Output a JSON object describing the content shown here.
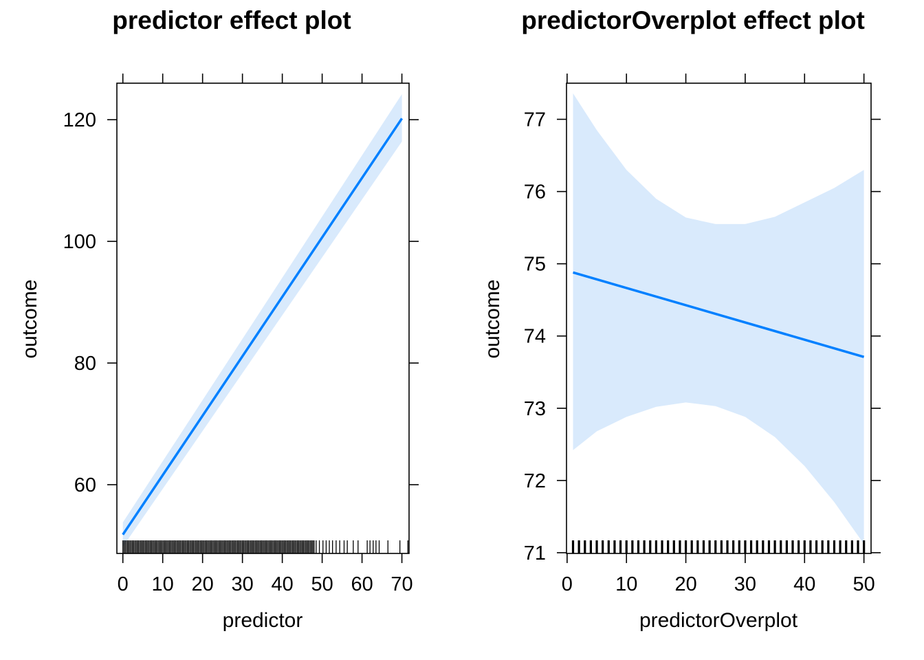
{
  "chart_data": [
    {
      "type": "line",
      "title": "predictor effect plot",
      "xlabel": "predictor",
      "ylabel": "outcome",
      "xlim": [
        -1.5,
        71.8
      ],
      "ylim": [
        48.7,
        126.0
      ],
      "x_ticks": [
        0,
        10,
        20,
        30,
        40,
        50,
        60,
        70
      ],
      "y_ticks": [
        60,
        80,
        100,
        120
      ],
      "series": [
        {
          "x": [
            0,
            70
          ],
          "y": [
            51.8,
            120.2
          ],
          "lower": [
            49.8,
            116.4
          ],
          "upper": [
            53.8,
            124.2
          ]
        }
      ],
      "band_color": "#d9eafc",
      "line_color": "#0080ff",
      "rug": {
        "dense_from": 0,
        "dense_to": 48,
        "dense_step": 0.3,
        "sparse": [
          48.5,
          49.3,
          50.2,
          51,
          51.8,
          52.6,
          53.5,
          54.4,
          55.5,
          56.3,
          57.8,
          59,
          61.3,
          62,
          62.8,
          63.5,
          64.3,
          66.5,
          69.5,
          71.5
        ]
      }
    },
    {
      "type": "line",
      "title": "predictorOverplot effect plot",
      "xlabel": "predictorOverplot",
      "ylabel": "outcome",
      "xlim": [
        -0.1,
        51.2
      ],
      "ylim": [
        70.99,
        77.5
      ],
      "x_ticks": [
        0,
        10,
        20,
        30,
        40,
        50
      ],
      "y_ticks": [
        71,
        72,
        73,
        74,
        75,
        76,
        77
      ],
      "series": [
        {
          "x": [
            1,
            50
          ],
          "y": [
            74.88,
            73.71
          ]
        }
      ],
      "band": {
        "x": [
          1,
          5,
          10,
          15,
          20,
          25,
          30,
          35,
          40,
          45,
          50
        ],
        "upper": [
          77.36,
          76.85,
          76.3,
          75.9,
          75.64,
          75.55,
          75.55,
          75.65,
          75.85,
          76.05,
          76.3
        ],
        "lower": [
          72.42,
          72.68,
          72.88,
          73.02,
          73.08,
          73.03,
          72.88,
          72.6,
          72.2,
          71.7,
          71.12
        ]
      },
      "band_color": "#d9eafc",
      "line_color": "#0080ff",
      "rug": {
        "values": [
          1,
          2,
          3,
          4,
          5,
          6,
          7,
          8,
          9,
          10,
          11,
          12,
          13,
          14,
          15,
          16,
          17,
          18,
          19,
          20,
          21,
          22,
          23,
          24,
          25,
          26,
          27,
          28,
          29,
          30,
          31,
          32,
          33,
          34,
          35,
          36,
          37,
          38,
          39,
          40,
          41,
          42,
          43,
          44,
          45,
          46,
          47,
          48,
          49,
          50
        ]
      }
    }
  ]
}
